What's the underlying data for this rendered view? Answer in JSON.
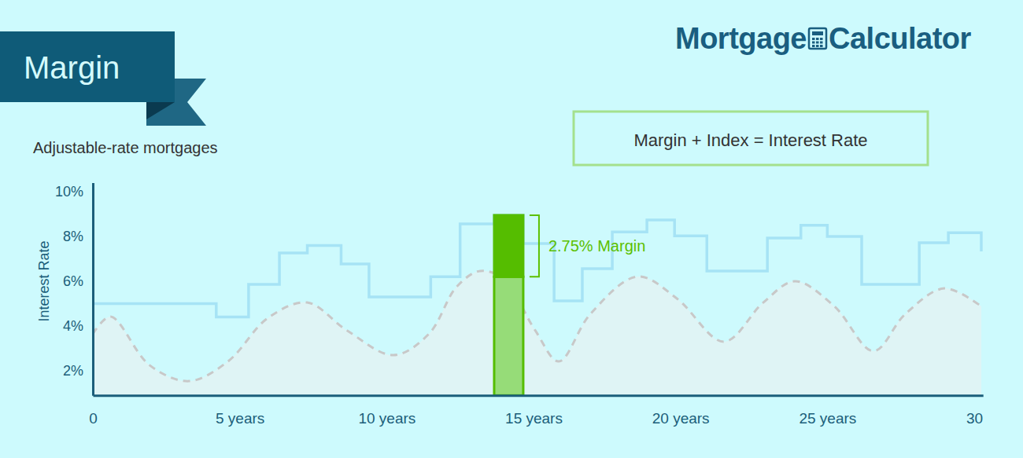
{
  "chart_data": {
    "type": "line",
    "title": "Margin",
    "subtitle": "Adjustable-rate mortgages",
    "ylabel": "Interest Rate",
    "annotations": [
      "Margin + Index = Interest Rate"
    ],
    "brand": {
      "left": "Mortgage",
      "right": "Calculator"
    },
    "xlim": [
      0,
      30.3
    ],
    "xticks": [
      0,
      {
        "value": 5,
        "label": "5 years"
      },
      {
        "value": 10,
        "label": "10 years"
      },
      {
        "value": 15,
        "label": "15 years"
      },
      {
        "value": 20,
        "label": "20 years"
      },
      {
        "value": 25,
        "label": "25 years"
      },
      30
    ],
    "ylim": [
      0.9,
      10.4
    ],
    "yticks": [
      {
        "value": 2,
        "label": "2%"
      },
      {
        "value": 4,
        "label": "4%"
      },
      {
        "value": 6,
        "label": "6%"
      },
      {
        "value": 8,
        "label": "8%"
      },
      {
        "value": 10,
        "label": "10%"
      }
    ],
    "grid": false,
    "series": [
      {
        "type": "step",
        "color": "#a6e3f5",
        "line_style": "solid",
        "x": [
          0,
          4.2,
          5.3,
          6.35,
          7.3,
          8.45,
          9.4,
          11.5,
          12.5,
          13.66,
          14.65,
          15.7,
          16.66,
          17.68,
          18.86,
          19.8,
          20.9,
          22.96,
          24.1,
          25.0,
          26.17,
          28.13,
          29.12,
          30.24
        ],
        "values": [
          5.0,
          4.4,
          5.86,
          7.26,
          7.6,
          6.77,
          5.3,
          6.2,
          8.56,
          8.95,
          7.68,
          5.12,
          6.56,
          8.2,
          8.74,
          8.03,
          6.46,
          7.93,
          8.5,
          8.0,
          5.86,
          7.72,
          8.17,
          7.33
        ]
      },
      {
        "type": "area",
        "color": "#c8c8c8",
        "line_style": "dashed",
        "x": [
          0,
          0.6,
          1.93,
          3.27,
          4.6,
          5.95,
          7.29,
          8.63,
          10.23,
          11.44,
          12.38,
          13.18,
          13.98,
          15.05,
          15.86,
          16.93,
          18.54,
          19.88,
          21.48,
          22.82,
          23.9,
          25.24,
          26.57,
          27.65,
          28.98,
          30.24
        ],
        "values": [
          3.65,
          4.42,
          2.25,
          1.54,
          2.42,
          4.35,
          5.05,
          3.82,
          2.7,
          3.65,
          5.75,
          6.46,
          6.1,
          3.82,
          2.42,
          4.53,
          6.21,
          5.23,
          3.3,
          5.05,
          6.0,
          4.88,
          2.88,
          4.53,
          5.68,
          4.88
        ]
      }
    ],
    "highlight": {
      "x_start": 13.66,
      "x_end": 14.65,
      "index": 6.2,
      "margin": 2.75,
      "label": "2.75% Margin"
    }
  }
}
